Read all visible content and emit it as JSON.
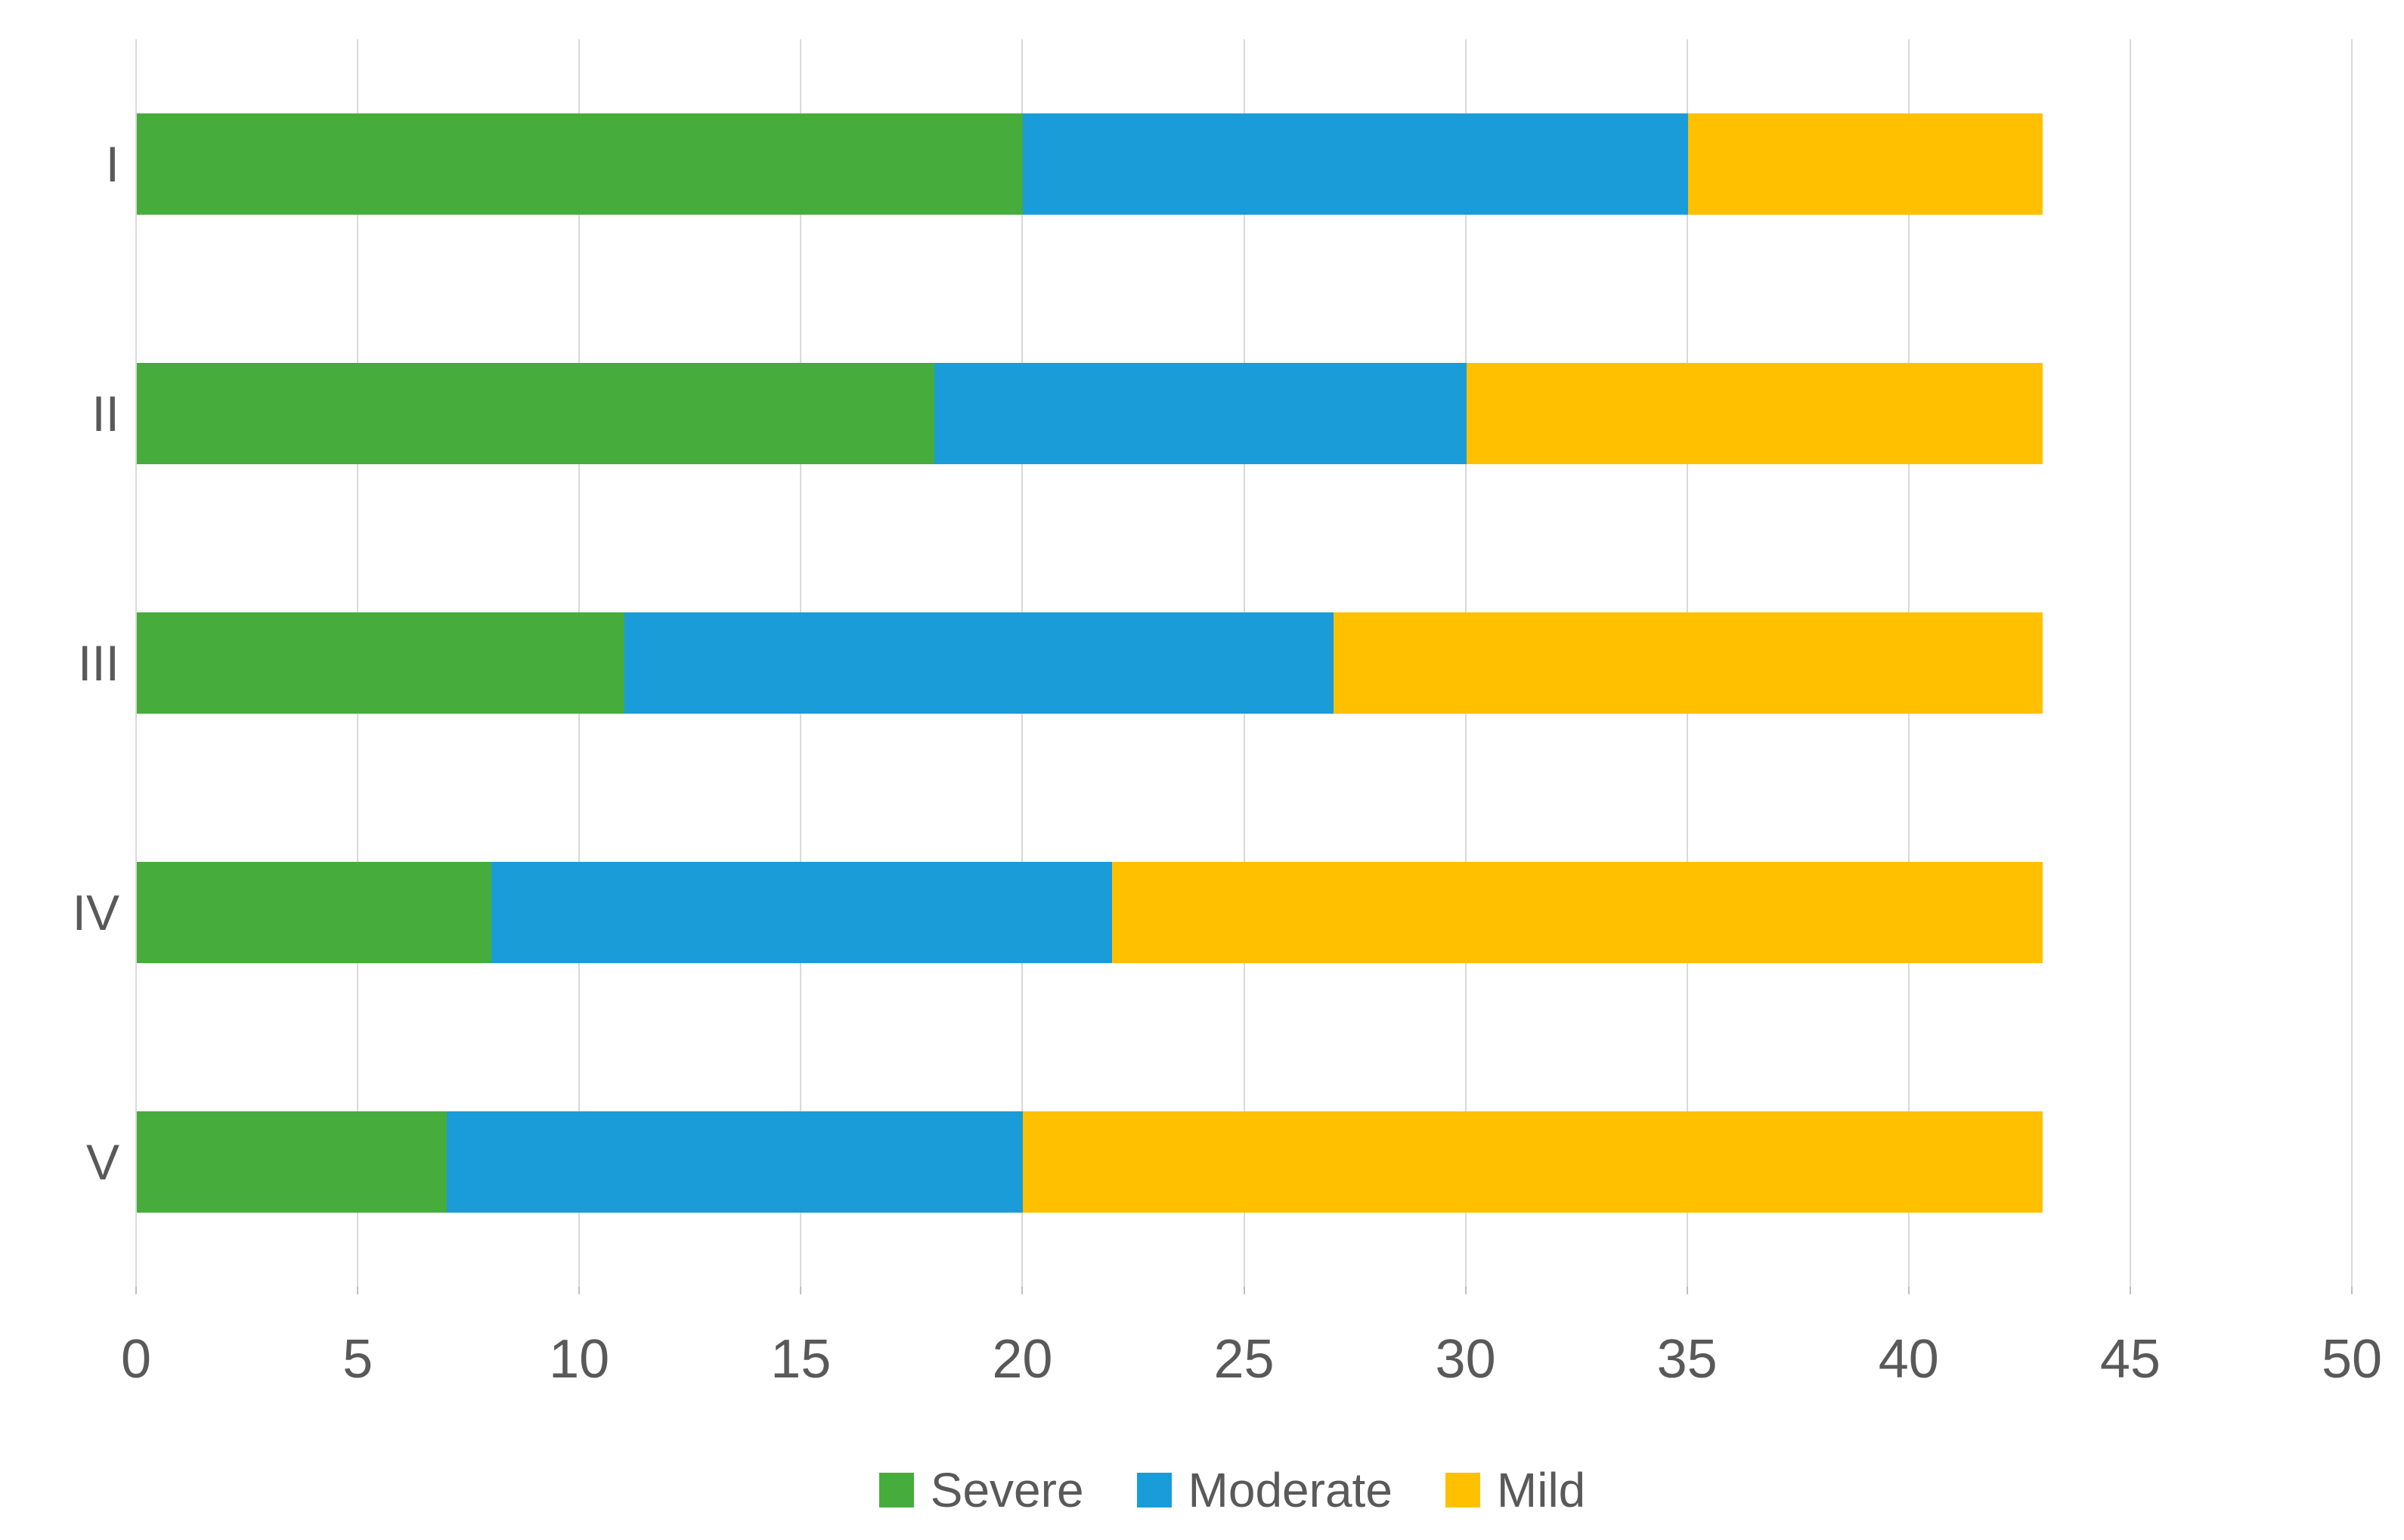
{
  "chart_data": {
    "type": "bar",
    "orientation": "horizontal",
    "stacked": true,
    "title": "",
    "categories": [
      "I",
      "II",
      "III",
      "IV",
      "V"
    ],
    "series": [
      {
        "name": "Severe",
        "color": "#46AD3C",
        "values": [
          20,
          18,
          11,
          8,
          7
        ]
      },
      {
        "name": "Moderate",
        "color": "#1A9CD8",
        "values": [
          15,
          12,
          16,
          14,
          13
        ]
      },
      {
        "name": "Mild",
        "color": "#FFC000",
        "values": [
          8,
          13,
          16,
          21,
          23
        ]
      }
    ],
    "xlim": [
      0,
      50
    ],
    "xticks": [
      0,
      5,
      10,
      15,
      20,
      25,
      30,
      35,
      40,
      45,
      50
    ],
    "grid": "vertical",
    "legend_position": "bottom",
    "colors": {
      "gridline": "#D9D9D9",
      "tick_mark": "#BFBFBF",
      "axis_text": "#595959",
      "background": "#FFFFFF"
    }
  }
}
